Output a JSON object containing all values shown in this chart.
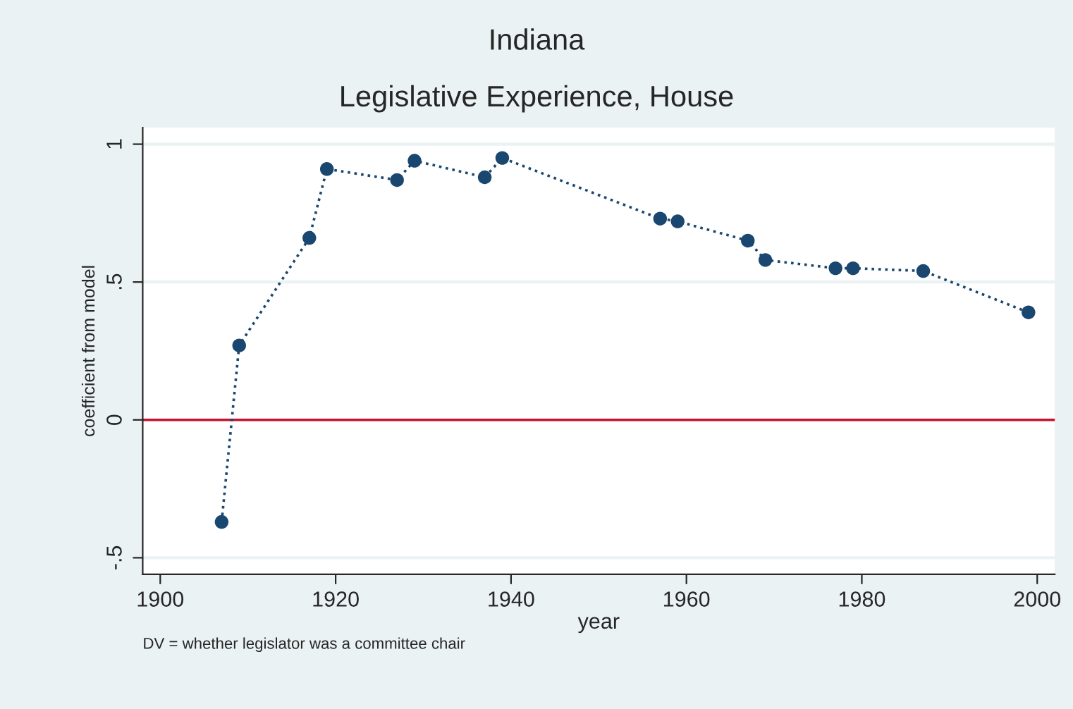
{
  "chart_data": {
    "type": "line",
    "title": "Indiana",
    "subtitle": "Legislative Experience, House",
    "xlabel": "year",
    "ylabel": "coefficient from model",
    "annotations": [
      "DV = whether legislator was a committee chair"
    ],
    "x": [
      1907,
      1909,
      1917,
      1919,
      1927,
      1929,
      1937,
      1939,
      1957,
      1959,
      1967,
      1969,
      1977,
      1979,
      1987,
      1999
    ],
    "series": [
      {
        "color": "#1a476f",
        "values": [
          -0.37,
          0.27,
          0.66,
          0.91,
          0.87,
          0.94,
          0.88,
          0.95,
          0.73,
          0.72,
          0.65,
          0.58,
          0.55,
          0.55,
          0.54,
          0.39
        ]
      }
    ],
    "marker": "circle",
    "line_style": "dotted",
    "xlim": [
      1898,
      2002
    ],
    "xticks": [
      1900,
      1920,
      1940,
      1960,
      1980,
      2000
    ],
    "ylim": [
      -0.56,
      1.06
    ],
    "yticks": [
      {
        "value": -0.5,
        "label": "-.5"
      },
      0,
      {
        "value": 0.5,
        "label": ".5"
      },
      1
    ],
    "grid": "y",
    "ref_lines": [
      {
        "axis": "y",
        "value": 0,
        "color": "#c8102e"
      }
    ]
  }
}
